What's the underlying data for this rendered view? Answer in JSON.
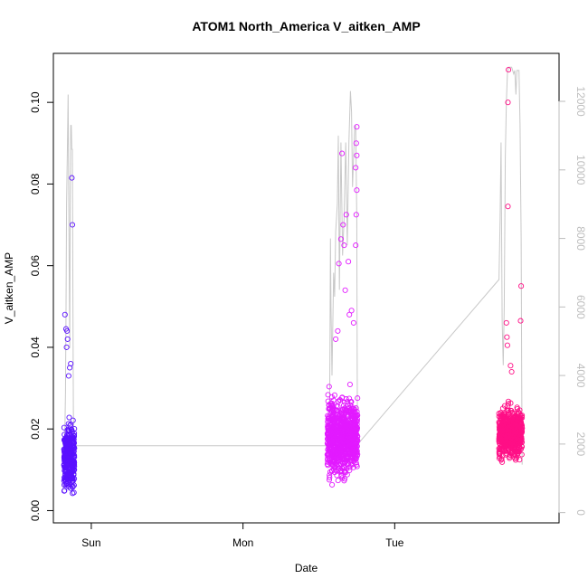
{
  "chart_data": {
    "type": "scatter",
    "title": "ATOM1 North_America V_aitken_AMP",
    "xlabel": "Date",
    "ylabel": "V_aitken_AMP",
    "x_axis": {
      "kind": "date",
      "range": [
        "2016-07-30T18:00",
        "2016-08-03T02:00"
      ],
      "ticks": [
        {
          "label": "Sun",
          "at": "2016-07-31T00:00"
        },
        {
          "label": "Mon",
          "at": "2016-08-01T00:00"
        },
        {
          "label": "Tue",
          "at": "2016-08-02T00:00"
        }
      ]
    },
    "y_left": {
      "range": [
        -0.003,
        0.112
      ],
      "ticks": [
        0.0,
        0.02,
        0.04,
        0.06,
        0.08,
        0.1
      ],
      "tick_labels": [
        "0.00",
        "0.02",
        "0.04",
        "0.06",
        "0.08",
        "0.10"
      ]
    },
    "y_right": {
      "range": [
        -300,
        13400
      ],
      "ticks": [
        0,
        2000,
        4000,
        6000,
        8000,
        10000,
        12000
      ],
      "tick_labels": [
        "0",
        "2000",
        "4000",
        "6000",
        "8000",
        "10000",
        "12000"
      ],
      "color": "#bdbdbd"
    },
    "grid": false,
    "legend": "none",
    "series": [
      {
        "kind": "points",
        "color": "#5a10ff",
        "clusters": [
          {
            "t_range": [
              "2016-07-30T19:40",
              "2016-07-30T21:20"
            ],
            "median": 0.013,
            "spread": 0.012,
            "count": 380,
            "outliers": [
              [
                "2016-07-30T19:50",
                0.048
              ],
              [
                "2016-07-30T20:00",
                0.0445
              ],
              [
                "2016-07-30T20:10",
                0.044
              ],
              [
                "2016-07-30T20:15",
                0.042
              ],
              [
                "2016-07-30T20:05",
                0.04
              ],
              [
                "2016-07-30T20:55",
                0.0815
              ],
              [
                "2016-07-30T21:00",
                0.07
              ],
              [
                "2016-07-30T20:45",
                0.036
              ],
              [
                "2016-07-30T20:35",
                0.035
              ],
              [
                "2016-07-30T20:25",
                0.033
              ]
            ]
          }
        ]
      },
      {
        "kind": "points",
        "color": "#e21aff",
        "clusters": [
          {
            "t_range": [
              "2016-08-01T13:20",
              "2016-08-01T18:10"
            ],
            "median": 0.018,
            "spread": 0.014,
            "count": 900,
            "outliers": [
              [
                "2016-08-01T15:40",
                0.0875
              ],
              [
                "2016-08-01T18:00",
                0.094
              ],
              [
                "2016-08-01T17:55",
                0.09
              ],
              [
                "2016-08-01T18:00",
                0.087
              ],
              [
                "2016-08-01T17:50",
                0.084
              ],
              [
                "2016-08-01T18:00",
                0.0785
              ],
              [
                "2016-08-01T17:55",
                0.0725
              ],
              [
                "2016-08-01T16:20",
                0.0725
              ],
              [
                "2016-08-01T15:50",
                0.07
              ],
              [
                "2016-08-01T15:30",
                0.0665
              ],
              [
                "2016-08-01T16:00",
                0.065
              ],
              [
                "2016-08-01T17:50",
                0.065
              ],
              [
                "2016-08-01T16:40",
                0.061
              ],
              [
                "2016-08-01T15:10",
                0.0605
              ],
              [
                "2016-08-01T16:10",
                0.054
              ],
              [
                "2016-08-01T17:10",
                0.049
              ],
              [
                "2016-08-01T15:00",
                0.044
              ],
              [
                "2016-08-01T17:30",
                0.046
              ],
              [
                "2016-08-01T16:50",
                0.048
              ],
              [
                "2016-08-01T14:40",
                0.042
              ]
            ]
          }
        ]
      },
      {
        "kind": "points",
        "color": "#ff0f86",
        "clusters": [
          {
            "t_range": [
              "2016-08-02T16:30",
              "2016-08-02T20:10"
            ],
            "median": 0.019,
            "spread": 0.009,
            "count": 650,
            "outliers": [
              [
                "2016-08-02T18:00",
                0.108
              ],
              [
                "2016-08-02T17:55",
                0.1
              ],
              [
                "2016-08-02T17:55",
                0.0745
              ],
              [
                "2016-08-02T20:00",
                0.055
              ],
              [
                "2016-08-02T19:55",
                0.0465
              ],
              [
                "2016-08-02T17:40",
                0.046
              ],
              [
                "2016-08-02T17:45",
                0.0425
              ],
              [
                "2016-08-02T17:50",
                0.0405
              ],
              [
                "2016-08-02T18:20",
                0.0355
              ],
              [
                "2016-08-02T18:30",
                0.034
              ]
            ]
          }
        ]
      },
      {
        "kind": "line",
        "axis": "right",
        "color": "#c8c8c8",
        "points": [
          [
            "2016-07-30T19:35",
            700
          ],
          [
            "2016-07-30T19:45",
            1500
          ],
          [
            "2016-07-30T19:55",
            3500
          ],
          [
            "2016-07-30T20:00",
            6000
          ],
          [
            "2016-07-30T20:05",
            9000
          ],
          [
            "2016-07-30T20:15",
            11000
          ],
          [
            "2016-07-30T20:20",
            12200
          ],
          [
            "2016-07-30T20:25",
            9500
          ],
          [
            "2016-07-30T20:30",
            7000
          ],
          [
            "2016-07-30T20:35",
            4800
          ],
          [
            "2016-07-30T20:40",
            9000
          ],
          [
            "2016-07-30T20:45",
            11300
          ],
          [
            "2016-07-30T20:50",
            11300
          ],
          [
            "2016-07-30T20:55",
            10600
          ],
          [
            "2016-07-30T21:00",
            10600
          ],
          [
            "2016-07-30T21:05",
            7000
          ],
          [
            "2016-07-30T21:10",
            3000
          ],
          [
            "2016-07-30T21:15",
            1950
          ],
          [
            "2016-08-01T13:40",
            1950
          ],
          [
            "2016-08-01T13:45",
            4500
          ],
          [
            "2016-08-01T13:50",
            8000
          ],
          [
            "2016-08-01T13:55",
            6000
          ],
          [
            "2016-08-01T14:05",
            4000
          ],
          [
            "2016-08-01T14:20",
            7000
          ],
          [
            "2016-08-01T14:30",
            6300
          ],
          [
            "2016-08-01T14:40",
            8200
          ],
          [
            "2016-08-01T14:55",
            9000
          ],
          [
            "2016-08-01T15:05",
            11000
          ],
          [
            "2016-08-01T15:15",
            6500
          ],
          [
            "2016-08-01T15:30",
            10800
          ],
          [
            "2016-08-01T15:45",
            7500
          ],
          [
            "2016-08-01T16:00",
            8600
          ],
          [
            "2016-08-01T16:15",
            10800
          ],
          [
            "2016-08-01T16:30",
            7800
          ],
          [
            "2016-08-01T16:45",
            10800
          ],
          [
            "2016-08-01T17:00",
            12300
          ],
          [
            "2016-08-01T17:10",
            11700
          ],
          [
            "2016-08-01T17:20",
            9500
          ],
          [
            "2016-08-01T17:30",
            10400
          ],
          [
            "2016-08-01T17:40",
            11200
          ],
          [
            "2016-08-01T17:50",
            11300
          ],
          [
            "2016-08-01T18:00",
            8600
          ],
          [
            "2016-08-01T18:05",
            3000
          ],
          [
            "2016-08-01T18:10",
            2000
          ],
          [
            "2016-08-02T16:30",
            6800
          ],
          [
            "2016-08-02T16:40",
            8500
          ],
          [
            "2016-08-02T16:50",
            10800
          ],
          [
            "2016-08-02T17:00",
            5600
          ],
          [
            "2016-08-02T17:10",
            4300
          ],
          [
            "2016-08-02T17:20",
            6000
          ],
          [
            "2016-08-02T17:30",
            10400
          ],
          [
            "2016-08-02T17:40",
            12000
          ],
          [
            "2016-08-02T17:50",
            12800
          ],
          [
            "2016-08-02T18:00",
            13000
          ],
          [
            "2016-08-02T18:30",
            13000
          ],
          [
            "2016-08-02T18:50",
            12800
          ],
          [
            "2016-08-02T19:00",
            12900
          ],
          [
            "2016-08-02T19:10",
            12200
          ],
          [
            "2016-08-02T19:20",
            12900
          ],
          [
            "2016-08-02T19:40",
            12900
          ],
          [
            "2016-08-02T19:50",
            11300
          ],
          [
            "2016-08-02T20:00",
            8000
          ],
          [
            "2016-08-02T20:05",
            4000
          ],
          [
            "2016-08-02T20:10",
            1400
          ]
        ]
      }
    ]
  }
}
